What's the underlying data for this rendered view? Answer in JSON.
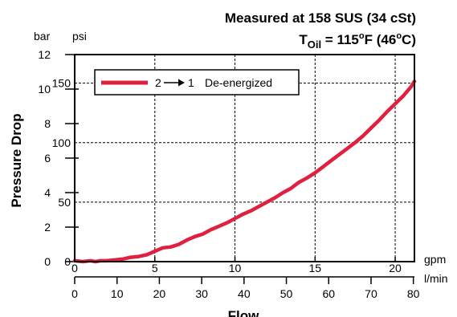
{
  "title": {
    "line1": "Measured at 158 SUS  (34 cSt)",
    "line2_prefix": "T",
    "line2_sub": "Oil",
    "line2_mid": " = 115",
    "line2_deg1": "o",
    "line2_f": "F  (46",
    "line2_deg2": "o",
    "line2_end": "C)"
  },
  "chart_data": {
    "type": "line",
    "title": "Measured at 158 SUS  (34 cSt)  T Oil = 115°F  (46°C)",
    "ylabel": "Pressure Drop",
    "xlabel": "Flow",
    "x_units": {
      "primary": "gpm",
      "secondary": "l/min"
    },
    "y_units": {
      "primary": "bar",
      "secondary": "psi"
    },
    "xlim_gpm": [
      0,
      21.2
    ],
    "ylim_bar": [
      0,
      12
    ],
    "grid": true,
    "legend_position": "top-left",
    "x_ticks_gpm": [
      0,
      5,
      10,
      15,
      20
    ],
    "x_ticks_lpm": [
      0,
      10,
      20,
      30,
      40,
      50,
      60,
      70,
      80
    ],
    "y_ticks_bar": [
      0,
      2,
      4,
      6,
      8,
      10,
      12
    ],
    "y_ticks_psi": [
      0,
      50,
      100,
      150
    ],
    "series": [
      {
        "name": "2→ 1  De-energized",
        "legend_from": "2",
        "legend_to": "1",
        "legend_text": "De-energized",
        "color": "#e0203f",
        "x": [
          0,
          0.5,
          1,
          1.3,
          1.6,
          2,
          2.5,
          3,
          3.5,
          4,
          4.5,
          5,
          5.5,
          6,
          6.5,
          7,
          7.5,
          8,
          8.5,
          9,
          9.5,
          10,
          10.5,
          11,
          11.5,
          12,
          12.5,
          13,
          13.5,
          14,
          14.5,
          15,
          15.5,
          16,
          16.5,
          17,
          17.5,
          18,
          18.5,
          19,
          19.5,
          20,
          20.5,
          21,
          21.2
        ],
        "y": [
          0.05,
          0.0,
          0.05,
          0.0,
          0.05,
          0.05,
          0.1,
          0.15,
          0.25,
          0.3,
          0.4,
          0.6,
          0.8,
          0.85,
          1.0,
          1.25,
          1.45,
          1.6,
          1.85,
          2.05,
          2.25,
          2.5,
          2.75,
          2.95,
          3.2,
          3.45,
          3.7,
          4.0,
          4.25,
          4.6,
          4.85,
          5.15,
          5.5,
          5.85,
          6.2,
          6.55,
          6.9,
          7.3,
          7.75,
          8.2,
          8.7,
          9.15,
          9.6,
          10.15,
          10.45
        ]
      }
    ]
  }
}
